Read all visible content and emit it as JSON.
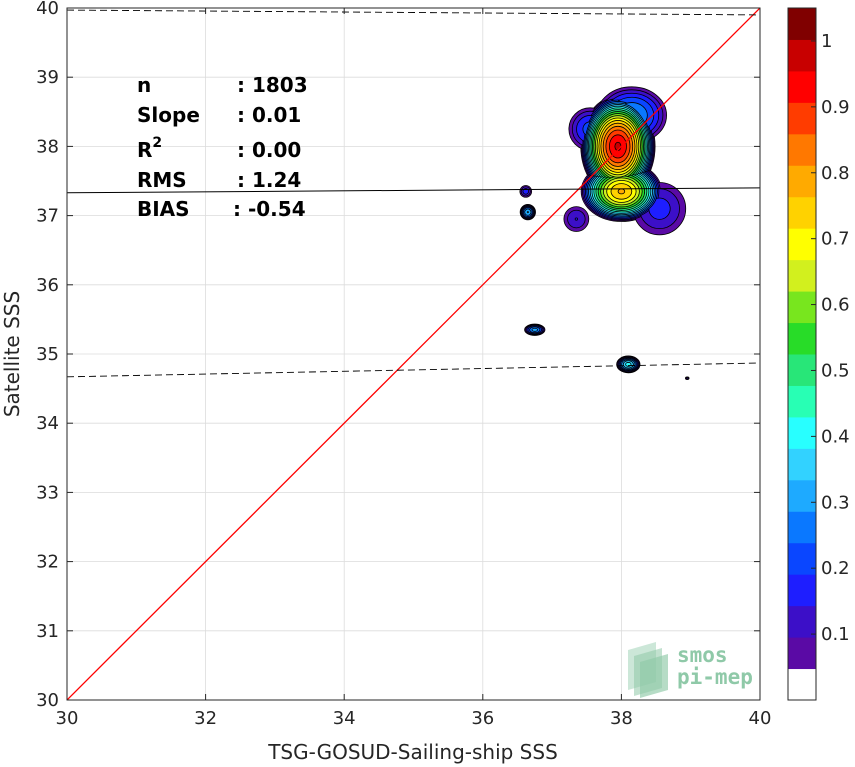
{
  "chart_data": {
    "type": "heatmap",
    "subtype": "density-contour-scatter",
    "title": "",
    "xlabel": "TSG-GOSUD-Sailing-ship SSS",
    "ylabel": "Satellite SSS",
    "xlim": [
      30,
      40
    ],
    "ylim": [
      30,
      40
    ],
    "xticks": [
      "30",
      "32",
      "34",
      "36",
      "38",
      "40"
    ],
    "yticks": [
      "30",
      "31",
      "32",
      "33",
      "34",
      "35",
      "36",
      "37",
      "38",
      "39",
      "40"
    ],
    "grid": true,
    "stats": [
      {
        "label": "n",
        "value": ": 1803"
      },
      {
        "label": "Slope",
        "value": ": 0.01"
      },
      {
        "label": "R",
        "sup": "2",
        "value": ": 0.00"
      },
      {
        "label": "RMS",
        "value": ": 1.24"
      },
      {
        "label": "BIAS",
        "value": ": -0.54"
      }
    ],
    "identity_line": {
      "x": [
        30,
        40
      ],
      "y": [
        30,
        40
      ],
      "color": "#ff0000"
    },
    "regression_line": {
      "x": [
        30,
        40
      ],
      "y": [
        37.33,
        37.4
      ],
      "color": "#000000"
    },
    "upper_bound_line": {
      "x": [
        30,
        40
      ],
      "y": [
        39.97,
        39.9
      ],
      "style": "dashed"
    },
    "lower_bound_line": {
      "x": [
        30,
        40
      ],
      "y": [
        34.67,
        34.87
      ],
      "style": "dashed"
    },
    "density_blobs": [
      {
        "cx": 37.95,
        "cy": 38.0,
        "rx": 0.55,
        "ry": 0.75,
        "peak": 1.0
      },
      {
        "cx": 38.0,
        "cy": 37.35,
        "rx": 0.6,
        "ry": 0.45,
        "peak": 0.8
      },
      {
        "cx": 38.15,
        "cy": 38.45,
        "rx": 0.55,
        "ry": 0.45,
        "peak": 0.3
      },
      {
        "cx": 37.55,
        "cy": 38.25,
        "rx": 0.35,
        "ry": 0.35,
        "peak": 0.22
      },
      {
        "cx": 38.55,
        "cy": 37.1,
        "rx": 0.45,
        "ry": 0.45,
        "peak": 0.17
      },
      {
        "cx": 37.35,
        "cy": 36.95,
        "rx": 0.22,
        "ry": 0.22,
        "peak": 0.15
      },
      {
        "cx": 36.65,
        "cy": 37.05,
        "rx": 0.12,
        "ry": 0.12,
        "peak": 0.35
      },
      {
        "cx": 36.62,
        "cy": 37.35,
        "rx": 0.1,
        "ry": 0.1,
        "peak": 0.18
      },
      {
        "cx": 36.75,
        "cy": 35.35,
        "rx": 0.16,
        "ry": 0.09,
        "peak": 0.32
      },
      {
        "cx": 38.1,
        "cy": 34.85,
        "rx": 0.18,
        "ry": 0.13,
        "peak": 0.42
      },
      {
        "cx": 38.95,
        "cy": 34.65,
        "rx": 0.035,
        "ry": 0.025,
        "peak": 0.12
      }
    ],
    "colorbar": {
      "levels": [
        0,
        0.05,
        0.1,
        0.15,
        0.2,
        0.25,
        0.3,
        0.35,
        0.4,
        0.45,
        0.5,
        0.55,
        0.6,
        0.65,
        0.7,
        0.75,
        0.8,
        0.85,
        0.9,
        0.95,
        1.0
      ],
      "colors": [
        "#ffffff",
        "#5a0aa5",
        "#3c0fc8",
        "#1e1eff",
        "#0a46ff",
        "#0a78ff",
        "#1eaaff",
        "#32d2ff",
        "#28ffff",
        "#28ffb4",
        "#28e678",
        "#28dc28",
        "#78e61e",
        "#d2f01e",
        "#ffff00",
        "#ffd200",
        "#ffaa00",
        "#ff7800",
        "#ff3c00",
        "#ff0000",
        "#c80000",
        "#800000"
      ],
      "ticks": [
        "0.1",
        "0.2",
        "0.3",
        "0.4",
        "0.5",
        "0.6",
        "0.7",
        "0.8",
        "0.9",
        "1"
      ]
    }
  },
  "logo": {
    "line1": "smos",
    "line2": "pi-mep"
  }
}
